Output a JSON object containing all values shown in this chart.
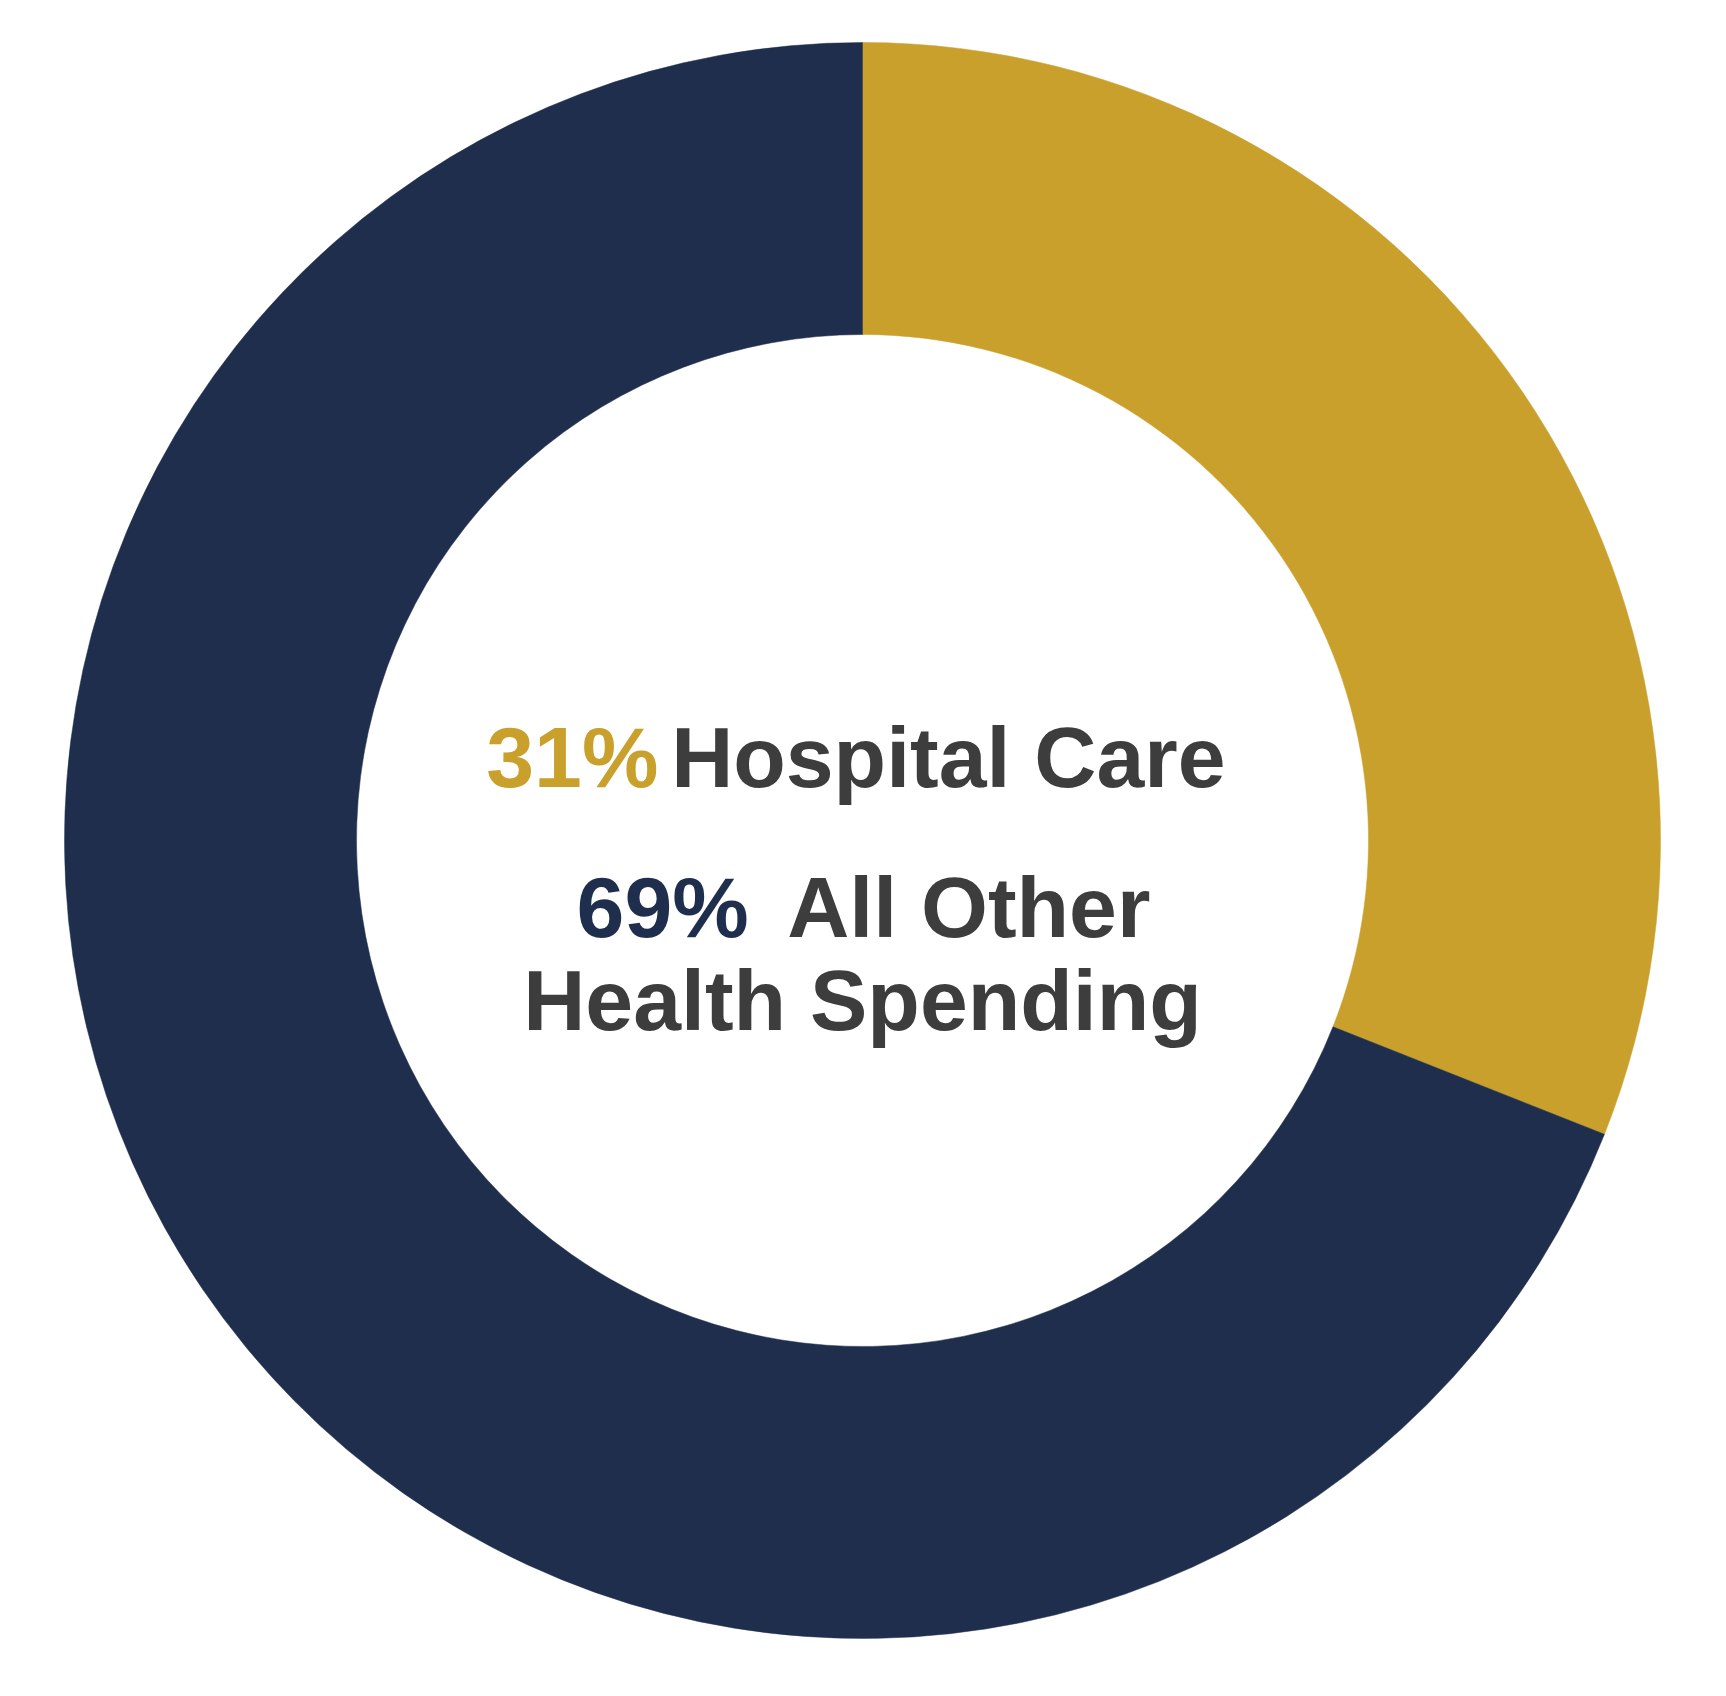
{
  "chart_data": {
    "type": "donut",
    "categories": [
      "Hospital Care",
      "All Other Health Spending"
    ],
    "values": [
      31,
      69
    ],
    "colors": [
      "#c9a02c",
      "#1e2e4c"
    ],
    "value_labels": [
      "31%",
      "69%"
    ]
  }
}
